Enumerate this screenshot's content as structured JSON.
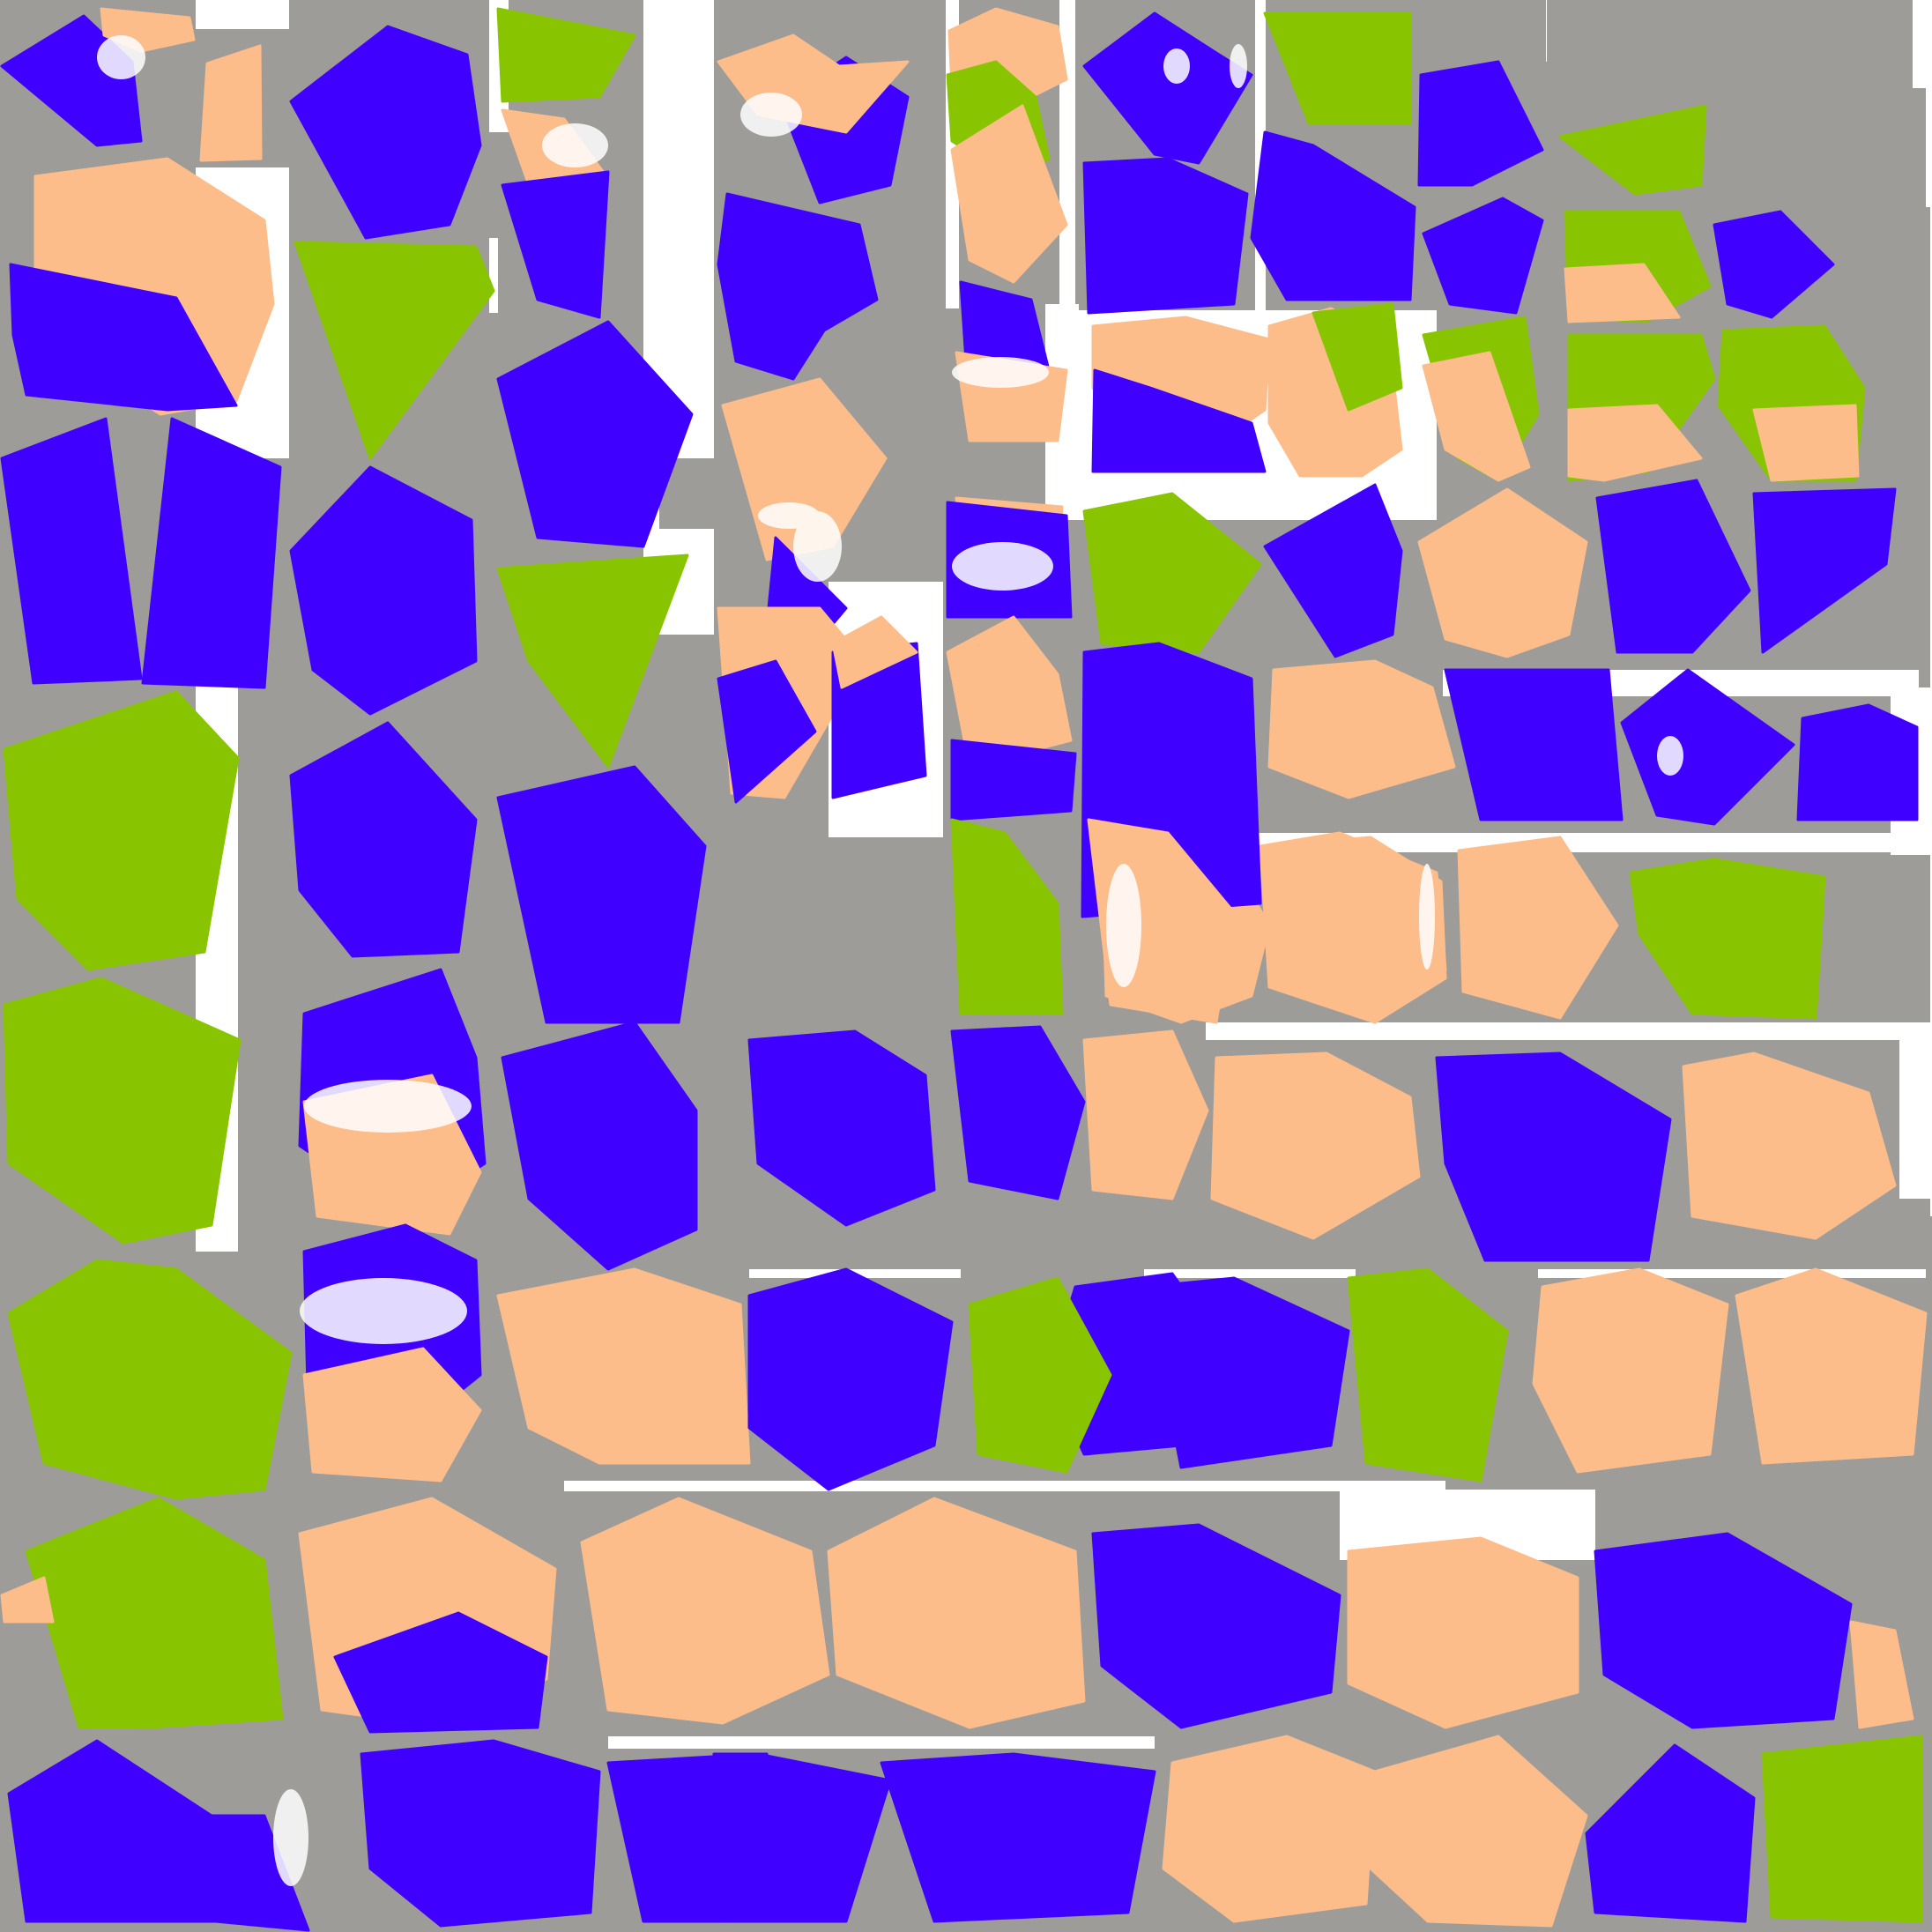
{
  "colors": {
    "background": "#ffffff",
    "gutter": "#9d9c98",
    "violet": "#3f00ff",
    "skin": "#fdbd8b",
    "green": "#88c400",
    "highlight": "#ffffff"
  }
}
